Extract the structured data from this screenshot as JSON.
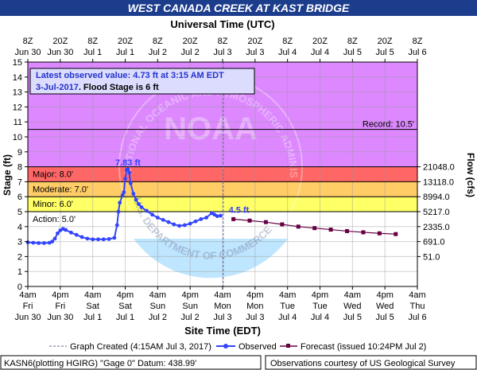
{
  "header": {
    "title": "WEST CANADA CREEK AT KAST BRIDGE",
    "title_bg": "#1c3c8c",
    "title_color": "#ffffff"
  },
  "chart_data": {
    "type": "line",
    "top_axis_label": "Universal Time (UTC)",
    "top_ticks": [
      {
        "time": "2017-06-30T04:00",
        "row1": "8Z",
        "row2": "Jun 30"
      },
      {
        "time": "2017-06-30T16:00",
        "row1": "20Z",
        "row2": "Jun 30"
      },
      {
        "time": "2017-07-01T04:00",
        "row1": "8Z",
        "row2": "Jul 1"
      },
      {
        "time": "2017-07-01T16:00",
        "row1": "20Z",
        "row2": "Jul 1"
      },
      {
        "time": "2017-07-02T04:00",
        "row1": "8Z",
        "row2": "Jul 2"
      },
      {
        "time": "2017-07-02T16:00",
        "row1": "20Z",
        "row2": "Jul 2"
      },
      {
        "time": "2017-07-03T04:00",
        "row1": "8Z",
        "row2": "Jul 3"
      },
      {
        "time": "2017-07-03T16:00",
        "row1": "20Z",
        "row2": "Jul 3"
      },
      {
        "time": "2017-07-04T04:00",
        "row1": "8Z",
        "row2": "Jul 4"
      },
      {
        "time": "2017-07-04T16:00",
        "row1": "20Z",
        "row2": "Jul 4"
      },
      {
        "time": "2017-07-05T04:00",
        "row1": "8Z",
        "row2": "Jul 5"
      },
      {
        "time": "2017-07-05T16:00",
        "row1": "20Z",
        "row2": "Jul 5"
      },
      {
        "time": "2017-07-06T04:00",
        "row1": "8Z",
        "row2": "Jul 6"
      }
    ],
    "bottom_ticks": [
      {
        "time": "2017-06-30T04:00",
        "row1": "4am",
        "row2": "Fri",
        "row3": "Jun 30"
      },
      {
        "time": "2017-06-30T16:00",
        "row1": "4pm",
        "row2": "Fri",
        "row3": "Jun 30"
      },
      {
        "time": "2017-07-01T04:00",
        "row1": "4am",
        "row2": "Sat",
        "row3": "Jul 1"
      },
      {
        "time": "2017-07-01T16:00",
        "row1": "4pm",
        "row2": "Sat",
        "row3": "Jul 1"
      },
      {
        "time": "2017-07-02T04:00",
        "row1": "4am",
        "row2": "Sun",
        "row3": "Jul 2"
      },
      {
        "time": "2017-07-02T16:00",
        "row1": "4pm",
        "row2": "Sun",
        "row3": "Jul 2"
      },
      {
        "time": "2017-07-03T04:00",
        "row1": "4am",
        "row2": "Mon",
        "row3": "Jul 3"
      },
      {
        "time": "2017-07-03T16:00",
        "row1": "4pm",
        "row2": "Mon",
        "row3": "Jul 3"
      },
      {
        "time": "2017-07-04T04:00",
        "row1": "4am",
        "row2": "Tue",
        "row3": "Jul 4"
      },
      {
        "time": "2017-07-04T16:00",
        "row1": "4pm",
        "row2": "Tue",
        "row3": "Jul 4"
      },
      {
        "time": "2017-07-05T04:00",
        "row1": "4am",
        "row2": "Wed",
        "row3": "Jul 5"
      },
      {
        "time": "2017-07-05T16:00",
        "row1": "4pm",
        "row2": "Wed",
        "row3": "Jul 5"
      },
      {
        "time": "2017-07-06T04:00",
        "row1": "4am",
        "row2": "Thu",
        "row3": "Jul 6"
      }
    ],
    "xlabel": "Site Time (EDT)",
    "ylabel": "Stage (ft)",
    "ylabel_right": "Flow (cfs)",
    "xlim": [
      "2017-06-30T04:00",
      "2017-07-06T04:00"
    ],
    "ylim": [
      0,
      15
    ],
    "y_ticks": [
      0,
      1,
      2,
      3,
      4,
      5,
      6,
      7,
      8,
      9,
      10,
      11,
      12,
      13,
      14,
      15
    ],
    "grid": true,
    "flow_ticks": [
      {
        "stage": 8,
        "label": "21048.0"
      },
      {
        "stage": 7,
        "label": "13118.0"
      },
      {
        "stage": 6,
        "label": "8994.0"
      },
      {
        "stage": 5,
        "label": "5217.0"
      },
      {
        "stage": 4,
        "label": "2335.0"
      },
      {
        "stage": 3,
        "label": "691.0"
      },
      {
        "stage": 2,
        "label": "51.0"
      }
    ],
    "flood_bands": [
      {
        "from": 0,
        "to": 5,
        "color": "#ffffff"
      },
      {
        "from": 5,
        "to": 6,
        "color": "#ffff66"
      },
      {
        "from": 6,
        "to": 7,
        "color": "#ffcc66"
      },
      {
        "from": 7,
        "to": 8,
        "color": "#ff6666"
      },
      {
        "from": 8,
        "to": 15,
        "color": "#dd88ff"
      }
    ],
    "stage_lines": [
      {
        "label": "Major: 8.0'",
        "value": 8.0
      },
      {
        "label": "Moderate: 7.0'",
        "value": 7.0
      },
      {
        "label": "Minor: 6.0'",
        "value": 6.0
      },
      {
        "label": "Action: 5.0'",
        "value": 5.0
      }
    ],
    "record": {
      "label": "Record: 10.5'",
      "value": 10.5
    },
    "info_box": {
      "line1": "Latest observed value: 4.73 ft at 3:15 AM EDT",
      "line2_date": "3-Jul-2017",
      "line2_rest": ".  Flood Stage is 6 ft"
    },
    "peak_label": "7.83 ft",
    "forecast_label": "4.5 ft",
    "series": [
      {
        "name": "Observed",
        "color": "#3344ff",
        "points": [
          [
            "2017-06-30T04:00",
            2.95
          ],
          [
            "2017-06-30T06:00",
            2.92
          ],
          [
            "2017-06-30T08:00",
            2.9
          ],
          [
            "2017-06-30T10:00",
            2.9
          ],
          [
            "2017-06-30T12:00",
            2.92
          ],
          [
            "2017-06-30T13:00",
            3.0
          ],
          [
            "2017-06-30T14:00",
            3.2
          ],
          [
            "2017-06-30T15:00",
            3.55
          ],
          [
            "2017-06-30T16:00",
            3.75
          ],
          [
            "2017-06-30T17:00",
            3.85
          ],
          [
            "2017-06-30T18:00",
            3.78
          ],
          [
            "2017-06-30T20:00",
            3.6
          ],
          [
            "2017-06-30T22:00",
            3.45
          ],
          [
            "2017-07-01T00:00",
            3.3
          ],
          [
            "2017-07-01T02:00",
            3.2
          ],
          [
            "2017-07-01T04:00",
            3.15
          ],
          [
            "2017-07-01T06:00",
            3.15
          ],
          [
            "2017-07-01T08:00",
            3.15
          ],
          [
            "2017-07-01T10:00",
            3.17
          ],
          [
            "2017-07-01T12:00",
            3.25
          ],
          [
            "2017-07-01T13:00",
            4.1
          ],
          [
            "2017-07-01T13:30",
            5.0
          ],
          [
            "2017-07-01T14:00",
            5.6
          ],
          [
            "2017-07-01T15:00",
            6.1
          ],
          [
            "2017-07-01T15:30",
            6.3
          ],
          [
            "2017-07-01T16:00",
            7.2
          ],
          [
            "2017-07-01T16:30",
            7.8
          ],
          [
            "2017-07-01T17:00",
            7.83
          ],
          [
            "2017-07-01T17:30",
            7.6
          ],
          [
            "2017-07-01T18:00",
            6.9
          ],
          [
            "2017-07-01T19:00",
            6.2
          ],
          [
            "2017-07-01T20:00",
            5.8
          ],
          [
            "2017-07-01T21:00",
            5.5
          ],
          [
            "2017-07-01T22:00",
            5.3
          ],
          [
            "2017-07-02T00:00",
            5.05
          ],
          [
            "2017-07-02T02:00",
            4.8
          ],
          [
            "2017-07-02T04:00",
            4.6
          ],
          [
            "2017-07-02T06:00",
            4.45
          ],
          [
            "2017-07-02T08:00",
            4.3
          ],
          [
            "2017-07-02T10:00",
            4.15
          ],
          [
            "2017-07-02T12:00",
            4.05
          ],
          [
            "2017-07-02T14:00",
            4.1
          ],
          [
            "2017-07-02T16:00",
            4.2
          ],
          [
            "2017-07-02T18:00",
            4.35
          ],
          [
            "2017-07-02T20:00",
            4.5
          ],
          [
            "2017-07-02T22:00",
            4.6
          ],
          [
            "2017-07-03T00:00",
            4.9
          ],
          [
            "2017-07-03T01:00",
            4.8
          ],
          [
            "2017-07-03T02:00",
            4.7
          ],
          [
            "2017-07-03T03:15",
            4.73
          ]
        ]
      },
      {
        "name": "Forecast (issued 10:24PM Jul 2)",
        "color": "#660044",
        "points": [
          [
            "2017-07-03T08:00",
            4.5
          ],
          [
            "2017-07-03T14:00",
            4.4
          ],
          [
            "2017-07-03T20:00",
            4.3
          ],
          [
            "2017-07-04T02:00",
            4.15
          ],
          [
            "2017-07-04T08:00",
            4.0
          ],
          [
            "2017-07-04T14:00",
            3.9
          ],
          [
            "2017-07-04T20:00",
            3.8
          ],
          [
            "2017-07-05T02:00",
            3.7
          ],
          [
            "2017-07-05T08:00",
            3.62
          ],
          [
            "2017-07-05T14:00",
            3.55
          ],
          [
            "2017-07-05T20:00",
            3.5
          ]
        ]
      }
    ],
    "graph_created": {
      "time": "2017-07-03T04:15",
      "label": "Graph Created (4:15AM Jul 3, 2017)"
    }
  },
  "legend": {
    "created": "Graph Created (4:15AM Jul 3, 2017)",
    "observed": "Observed",
    "forecast": "Forecast (issued 10:24PM Jul 2)"
  },
  "footer": {
    "left": "KASN6(plotting HGIRG) \"Gage 0\" Datum: 438.99'",
    "right": "Observations courtesy of US Geological Survey"
  },
  "watermark": {
    "text": "NATIONAL OCEANIC AND ATMOSPHERIC ADMINISTRATION",
    "bottom_text": "U.S. DEPARTMENT OF COMMERCE",
    "center": "NOAA"
  }
}
